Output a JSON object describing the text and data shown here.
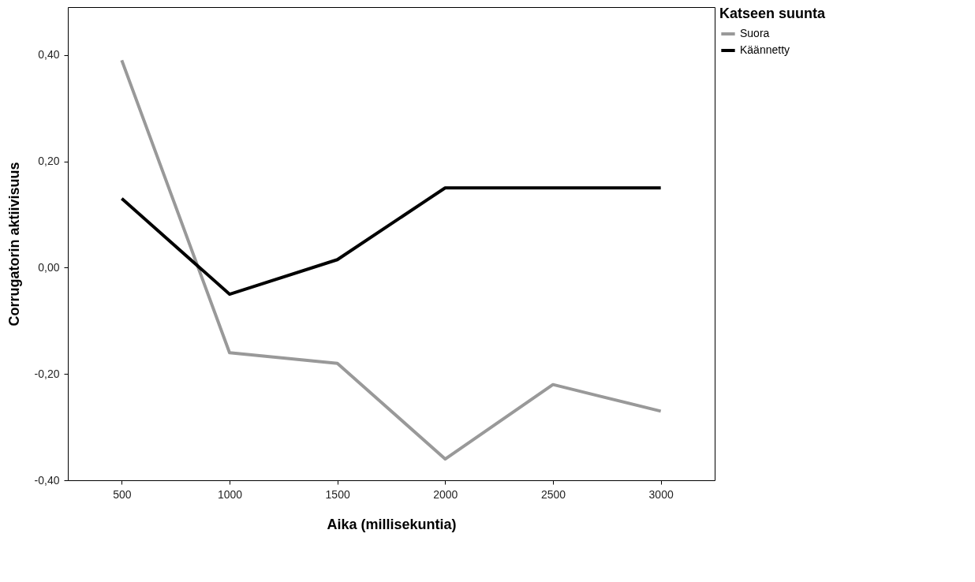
{
  "chart_data": {
    "type": "line",
    "xlabel": "Aika (millisekuntia)",
    "ylabel": "Corrugatorin aktiivisuus",
    "legend_title": "Katseen suunta",
    "categories": [
      "500",
      "1000",
      "1500",
      "2000",
      "2500",
      "3000"
    ],
    "series": [
      {
        "name": "Suora",
        "color": "#999999",
        "values": [
          0.39,
          -0.16,
          -0.18,
          -0.36,
          -0.22,
          -0.27
        ]
      },
      {
        "name": "Käännetty",
        "color": "#000000",
        "values": [
          0.13,
          -0.05,
          0.015,
          0.15,
          0.15,
          0.15
        ]
      }
    ],
    "ylim": [
      -0.4,
      0.49
    ],
    "yticks": [
      {
        "value": -0.4,
        "label": "-0,40"
      },
      {
        "value": -0.2,
        "label": "-0,20"
      },
      {
        "value": 0,
        "label": "0,00"
      },
      {
        "value": 0.2,
        "label": "0,20"
      },
      {
        "value": 0.4,
        "label": "0,40"
      }
    ],
    "grid": false,
    "legend": "right",
    "marker": "none",
    "line_style": "solid"
  }
}
